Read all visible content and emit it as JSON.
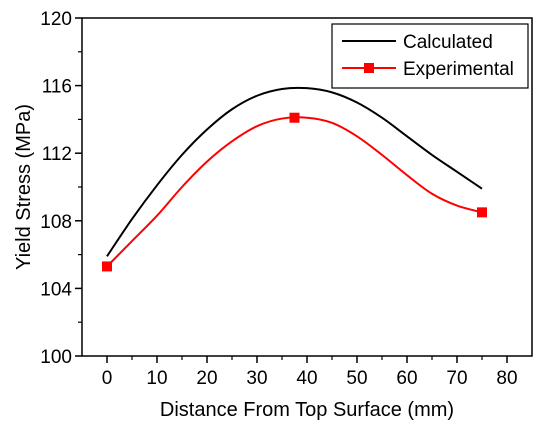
{
  "chart_data": {
    "type": "line",
    "xlabel": "Distance From Top Surface (mm)",
    "ylabel": "Yield Stress (MPa)",
    "xlim": [
      -5,
      85
    ],
    "ylim": [
      100,
      120
    ],
    "x_ticks": [
      "0",
      "10",
      "20",
      "30",
      "40",
      "50",
      "60",
      "70",
      "80"
    ],
    "y_ticks": [
      "100",
      "104",
      "108",
      "112",
      "116",
      "120"
    ],
    "grid": false,
    "legend_position": "top-right",
    "series": [
      {
        "name": "Calculated",
        "color": "#000000",
        "marker": "none",
        "x": [
          0,
          5,
          10,
          15,
          20,
          25,
          30,
          35,
          40,
          45,
          50,
          55,
          60,
          65,
          70,
          75
        ],
        "y": [
          105.9,
          108.1,
          110.1,
          111.9,
          113.4,
          114.6,
          115.4,
          115.8,
          115.85,
          115.6,
          115.0,
          114.1,
          113.0,
          111.9,
          110.9,
          109.9
        ]
      },
      {
        "name": "Experimental",
        "color": "#ff0000",
        "marker": "square",
        "marker_x": [
          0,
          37.5,
          75
        ],
        "marker_y": [
          105.3,
          114.1,
          108.5
        ],
        "x": [
          0,
          5,
          10,
          15,
          20,
          25,
          30,
          35,
          40,
          45,
          50,
          55,
          60,
          65,
          70,
          75
        ],
        "y": [
          105.3,
          106.8,
          108.3,
          110.0,
          111.5,
          112.7,
          113.6,
          114.05,
          114.1,
          113.8,
          113.0,
          111.9,
          110.7,
          109.6,
          108.9,
          108.5
        ]
      }
    ]
  }
}
